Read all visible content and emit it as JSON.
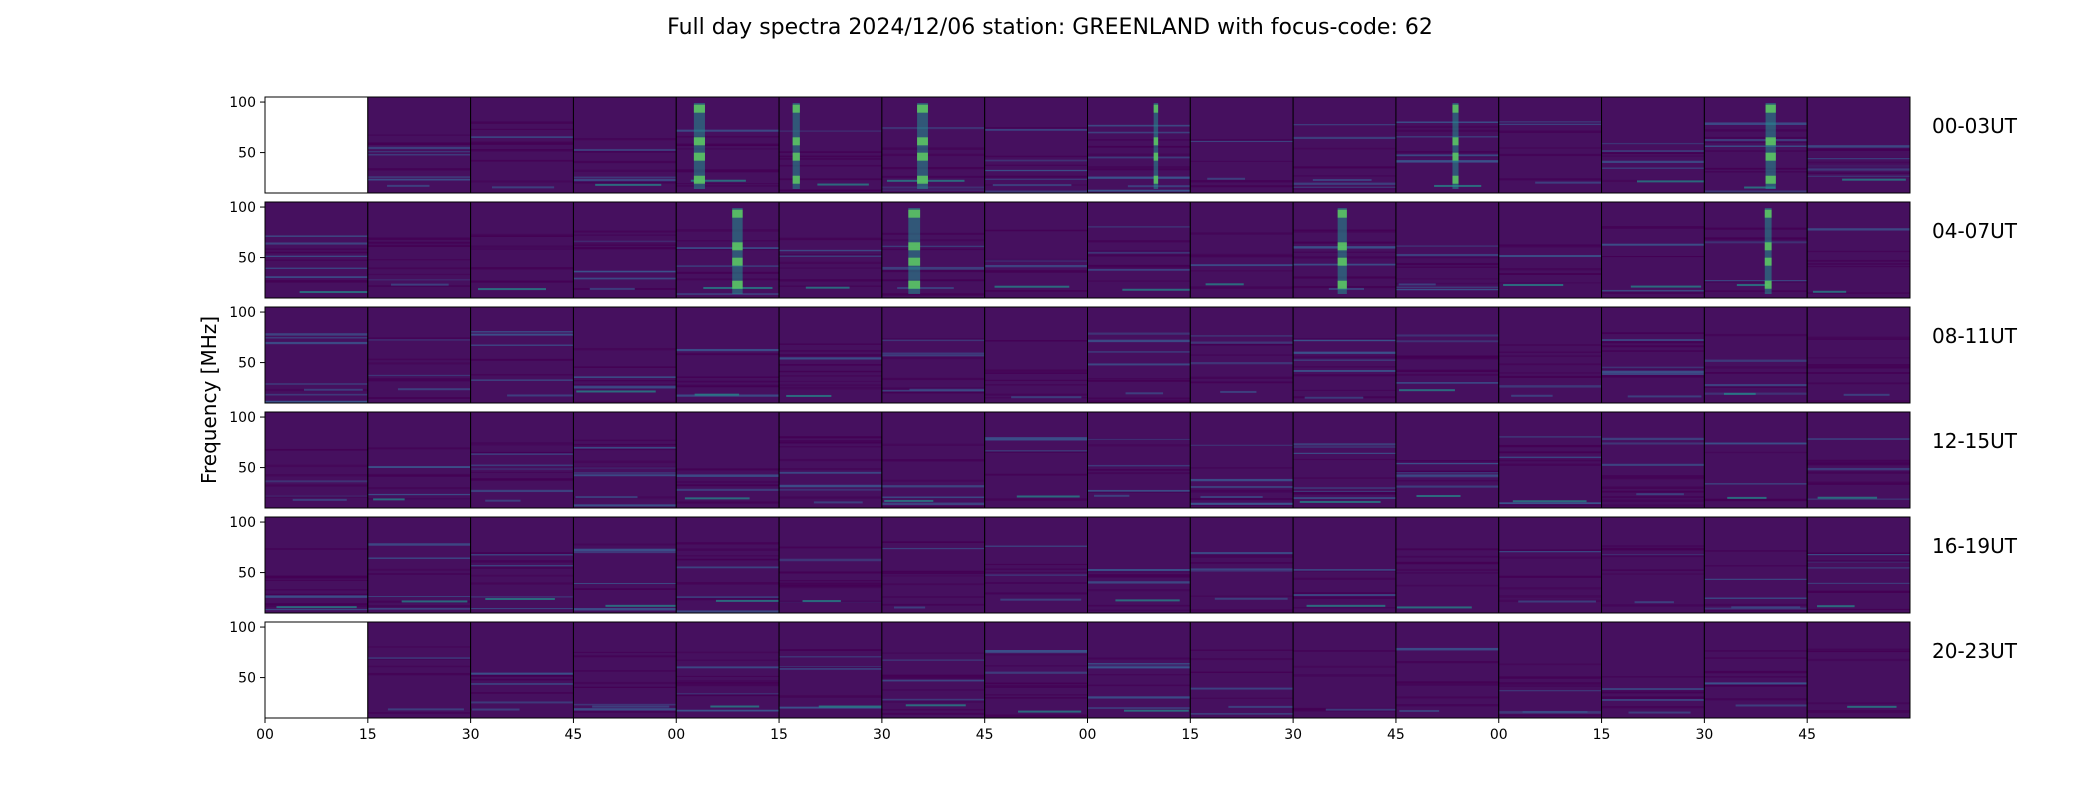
{
  "chart_data": {
    "type": "heatmap",
    "title": "Full day spectra 2024/12/06 station: GREENLAND with focus-code: 62",
    "ylabel": "Frequency [MHz]",
    "y_ticks": [
      50,
      100
    ],
    "ylim": [
      10,
      105
    ],
    "x_tick_labels": [
      "00",
      "15",
      "30",
      "45",
      "00",
      "15",
      "30",
      "45",
      "00",
      "15",
      "30",
      "45",
      "00",
      "15",
      "30",
      "45"
    ],
    "row_labels": [
      "00-03UT",
      "04-07UT",
      "08-11UT",
      "12-15UT",
      "16-19UT",
      "20-23UT"
    ],
    "panels_per_row": 16,
    "missing_panels": [
      [
        0,
        0
      ],
      [
        5,
        0
      ]
    ],
    "colormap": [
      "#440154",
      "#3b528b",
      "#21918c",
      "#5ec962",
      "#fde725"
    ],
    "background_color": "#46105f",
    "grid": false
  }
}
